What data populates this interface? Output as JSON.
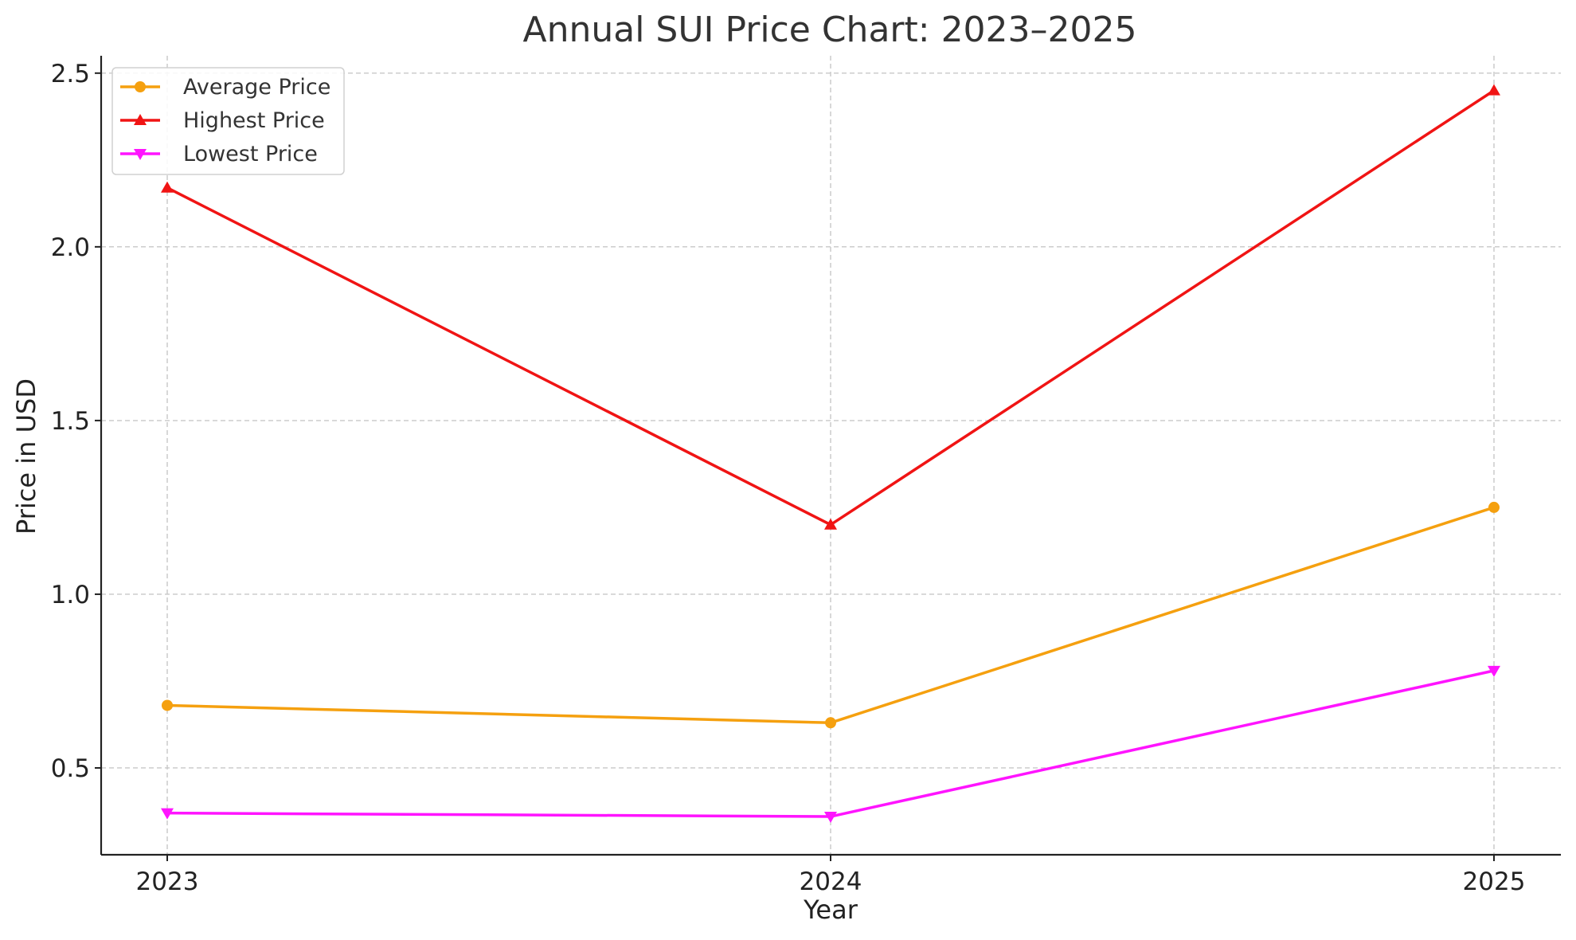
{
  "chart_data": {
    "type": "line",
    "title": "Annual SUI Price Chart: 2023–2025",
    "xlabel": "Year",
    "ylabel": "Price in USD",
    "categories": [
      "2023",
      "2024",
      "2025"
    ],
    "ylim": [
      0.25,
      2.55
    ],
    "yticks": [
      "0.5",
      "1.0",
      "1.5",
      "2.0",
      "2.5"
    ],
    "grid": true,
    "legend_position": "top-left",
    "series": [
      {
        "name": "Average Price",
        "values": [
          0.68,
          0.63,
          1.25
        ],
        "color": "#f5a00f",
        "marker": "circle"
      },
      {
        "name": "Highest Price",
        "values": [
          2.17,
          1.2,
          2.45
        ],
        "color": "#f01414",
        "marker": "triangle-up"
      },
      {
        "name": "Lowest Price",
        "values": [
          0.37,
          0.36,
          0.78
        ],
        "color": "#ff14ff",
        "marker": "triangle-down"
      }
    ]
  }
}
